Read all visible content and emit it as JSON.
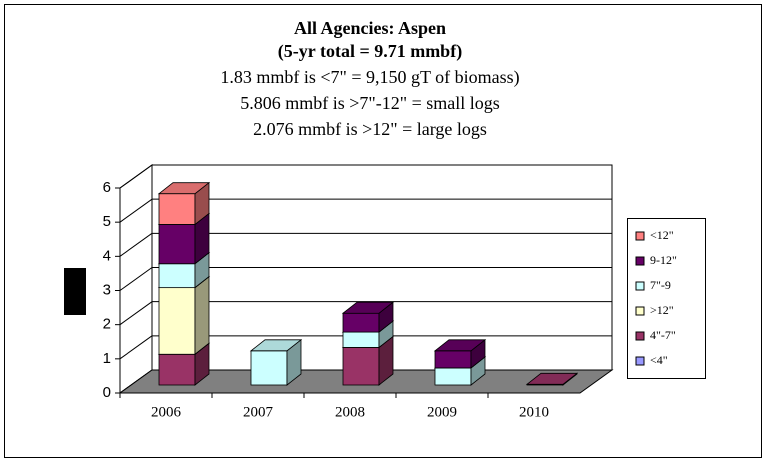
{
  "chart_data": {
    "type": "bar3d_stacked",
    "title": [
      "All Agencies:  Aspen",
      "(5-yr total = 9.71 mmbf)",
      "1.83 mmbf is <7\" = 9,150 gT of biomass)",
      "5.806 mmbf is >7\"-12\" = small logs",
      "2.076 mmbf is >12\" = large logs"
    ],
    "categories": [
      "2006",
      "2007",
      "2008",
      "2009",
      "2010"
    ],
    "series": [
      {
        "name": "<4\"",
        "color": "#9999ff",
        "values": [
          0,
          0,
          0,
          0,
          0
        ]
      },
      {
        "name": "4\"-7\"",
        "color": "#993366",
        "values": [
          0.9,
          0,
          1.1,
          0,
          0.02
        ]
      },
      {
        "name": ">12\"",
        "color": "#ffffcc",
        "values": [
          1.95,
          0,
          0,
          0,
          0
        ]
      },
      {
        "name": "7\"-9",
        "color": "#ccffff",
        "values": [
          0.7,
          1.0,
          0.45,
          0.5,
          0
        ]
      },
      {
        "name": "9-12\"",
        "color": "#660066",
        "values": [
          1.15,
          0,
          0.55,
          0.5,
          0
        ]
      },
      {
        "name": "<12\"",
        "color": "#ff8080",
        "values": [
          0.9,
          0,
          0,
          0,
          0
        ]
      }
    ],
    "ylim": [
      0,
      6
    ],
    "yticks": [
      0,
      1,
      2,
      3,
      4,
      5,
      6
    ],
    "grid": true,
    "legend": "right"
  }
}
